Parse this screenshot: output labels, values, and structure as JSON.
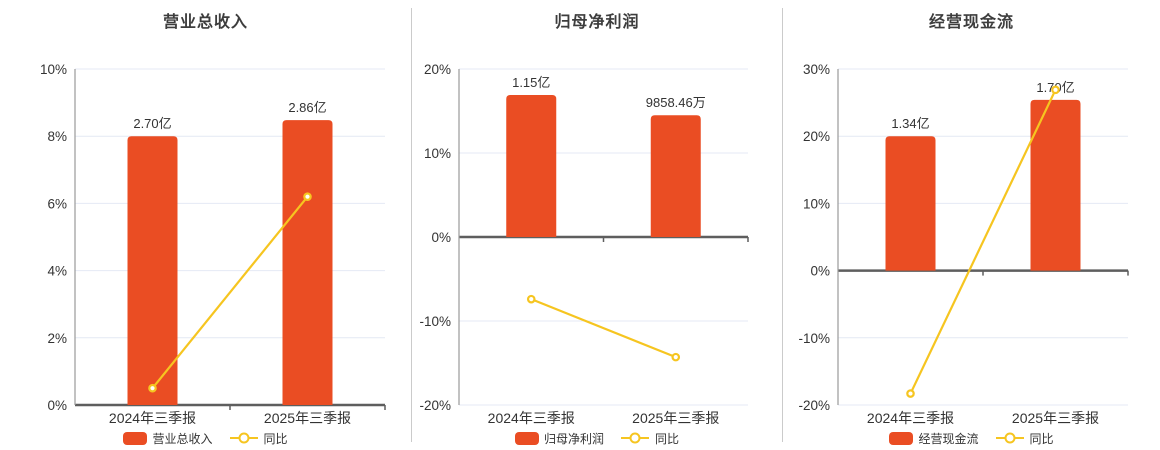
{
  "page": {
    "background": "#ffffff"
  },
  "colors": {
    "bar": "#EA4D23",
    "line": "#F6C520",
    "marker_fill": "#FFFFFF",
    "grid": "#E4E9F4",
    "zero_line": "#5E5E5E",
    "axis": "#9A9A9A",
    "text": "#333333",
    "title": "#3D3D3D",
    "divider": "#CBCBCB"
  },
  "categories": [
    "2024年三季报",
    "2025年三季报"
  ],
  "chart_data": [
    {
      "type": "bar+line",
      "title": "营业总收入",
      "categories": [
        "2024年三季报",
        "2025年三季报"
      ],
      "series": [
        {
          "name": "营业总收入",
          "type": "bar",
          "value_labels": [
            "2.70亿",
            "2.86亿"
          ],
          "plotted_pct": [
            8.0,
            8.48
          ]
        },
        {
          "name": "同比",
          "type": "line",
          "values_pct": [
            0.5,
            6.2
          ]
        }
      ],
      "series_label": "营业总收入",
      "line_label": "同比",
      "y_axis": {
        "min": 0,
        "max": 10,
        "step": 2,
        "tick_labels": [
          "10%",
          "8%",
          "6%",
          "4%",
          "2%",
          "0%"
        ]
      },
      "legend_position": "bottom",
      "grid": true
    },
    {
      "type": "bar+line",
      "title": "归母净利润",
      "categories": [
        "2024年三季报",
        "2025年三季报"
      ],
      "series": [
        {
          "name": "归母净利润",
          "type": "bar",
          "value_labels": [
            "1.15亿",
            "9858.46万"
          ],
          "plotted_pct": [
            16.9,
            14.5
          ]
        },
        {
          "name": "同比",
          "type": "line",
          "values_pct": [
            -7.4,
            -14.3
          ]
        }
      ],
      "series_label": "归母净利润",
      "line_label": "同比",
      "y_axis": {
        "min": -20,
        "max": 20,
        "step": 10,
        "tick_labels": [
          "20%",
          "10%",
          "0%",
          "-10%",
          "-20%"
        ]
      },
      "legend_position": "bottom",
      "grid": true
    },
    {
      "type": "bar+line",
      "title": "经营现金流",
      "categories": [
        "2024年三季报",
        "2025年三季报"
      ],
      "series": [
        {
          "name": "经营现金流",
          "type": "bar",
          "value_labels": [
            "1.34亿",
            "1.70亿"
          ],
          "plotted_pct": [
            20.0,
            25.4
          ]
        },
        {
          "name": "同比",
          "type": "line",
          "values_pct": [
            -18.3,
            26.9
          ]
        }
      ],
      "series_label": "经营现金流",
      "line_label": "同比",
      "y_axis": {
        "min": -20,
        "max": 30,
        "step": 10,
        "tick_labels": [
          "30%",
          "20%",
          "10%",
          "0%",
          "-10%",
          "-20%"
        ]
      },
      "legend_position": "bottom",
      "grid": true
    }
  ]
}
